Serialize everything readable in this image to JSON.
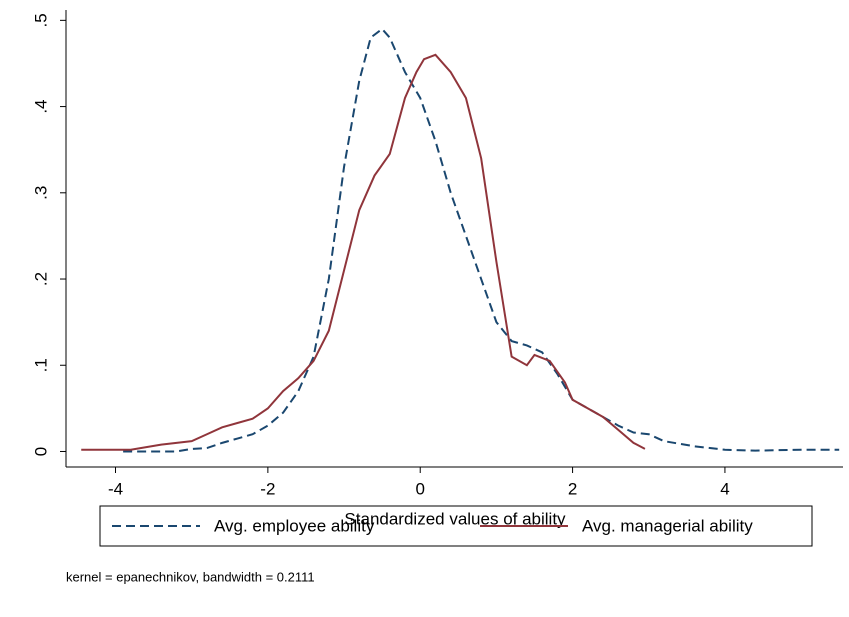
{
  "chart_data": {
    "type": "line",
    "xlabel": "Standardized values of ability",
    "note": "kernel = epanechnikov, bandwidth = 0.2111",
    "xlim": [
      -4.65,
      5.55
    ],
    "xticks": [
      -4,
      -2,
      0,
      2,
      4
    ],
    "ylim": [
      -0.018,
      0.512
    ],
    "yticks": [
      0,
      {
        "value": 0.1,
        "label": ".1"
      },
      {
        "value": 0.2,
        "label": ".2"
      },
      {
        "value": 0.3,
        "label": ".3"
      },
      {
        "value": 0.4,
        "label": ".4"
      },
      {
        "value": 0.5,
        "label": ".5"
      }
    ],
    "grid": false,
    "series": [
      {
        "name": "Avg. employee ability",
        "color": "#1a476f",
        "style": "dashed",
        "x": [
          -3.9,
          -3.5,
          -3.2,
          -3.0,
          -2.8,
          -2.6,
          -2.4,
          -2.2,
          -2.0,
          -1.8,
          -1.6,
          -1.4,
          -1.2,
          -1.0,
          -0.8,
          -0.65,
          -0.5,
          -0.4,
          -0.2,
          0.0,
          0.2,
          0.4,
          0.6,
          0.8,
          1.0,
          1.2,
          1.4,
          1.6,
          1.8,
          2.0,
          2.2,
          2.4,
          2.6,
          2.8,
          3.0,
          3.2,
          3.6,
          4.0,
          4.4,
          5.0,
          5.5
        ],
        "values": [
          0,
          0,
          0,
          0.003,
          0.004,
          0.01,
          0.015,
          0.02,
          0.03,
          0.045,
          0.07,
          0.11,
          0.2,
          0.33,
          0.43,
          0.48,
          0.49,
          0.48,
          0.44,
          0.41,
          0.36,
          0.3,
          0.25,
          0.2,
          0.15,
          0.128,
          0.123,
          0.115,
          0.09,
          0.06,
          0.05,
          0.04,
          0.03,
          0.022,
          0.02,
          0.012,
          0.006,
          0.002,
          0.001,
          0.002,
          0.002
        ]
      },
      {
        "name": "Avg. managerial ability",
        "color": "#90353b",
        "style": "solid",
        "x": [
          -4.45,
          -3.8,
          -3.4,
          -3.0,
          -2.8,
          -2.6,
          -2.4,
          -2.2,
          -2.0,
          -1.8,
          -1.6,
          -1.4,
          -1.2,
          -1.0,
          -0.8,
          -0.6,
          -0.4,
          -0.2,
          -0.05,
          0.05,
          0.2,
          0.4,
          0.6,
          0.8,
          1.0,
          1.2,
          1.4,
          1.5,
          1.7,
          1.9,
          2.0,
          2.2,
          2.4,
          2.6,
          2.8,
          2.95
        ],
        "values": [
          0.002,
          0.002,
          0.008,
          0.012,
          0.02,
          0.028,
          0.033,
          0.038,
          0.05,
          0.07,
          0.085,
          0.105,
          0.14,
          0.21,
          0.28,
          0.32,
          0.345,
          0.41,
          0.44,
          0.455,
          0.46,
          0.44,
          0.41,
          0.34,
          0.22,
          0.11,
          0.1,
          0.112,
          0.105,
          0.08,
          0.06,
          0.05,
          0.04,
          0.025,
          0.01,
          0.003
        ]
      }
    ]
  }
}
